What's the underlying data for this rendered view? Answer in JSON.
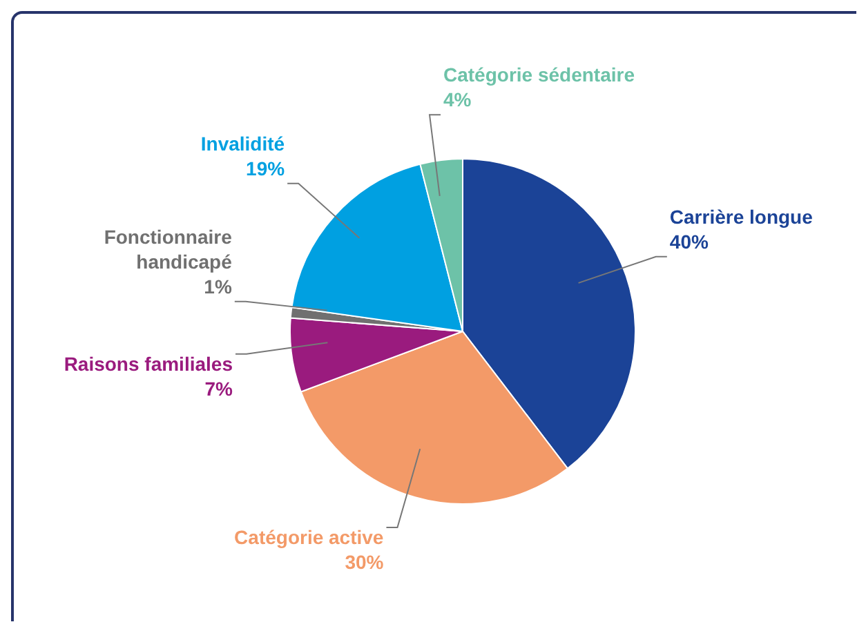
{
  "chart_data": {
    "type": "pie",
    "categories": [
      "Carrière longue",
      "Catégorie active",
      "Raisons familiales",
      "Fonctionnaire handicapé",
      "Invalidité",
      "Catégorie sédentaire"
    ],
    "values": [
      40,
      30,
      7,
      1,
      19,
      4
    ],
    "colors": [
      "#1b4397",
      "#f39a68",
      "#9a1b7e",
      "#707070",
      "#00a0e1",
      "#6dc2a8"
    ],
    "value_labels": [
      "40%",
      "30%",
      "7%",
      "1%",
      "19%",
      "4%"
    ],
    "legend": false
  }
}
